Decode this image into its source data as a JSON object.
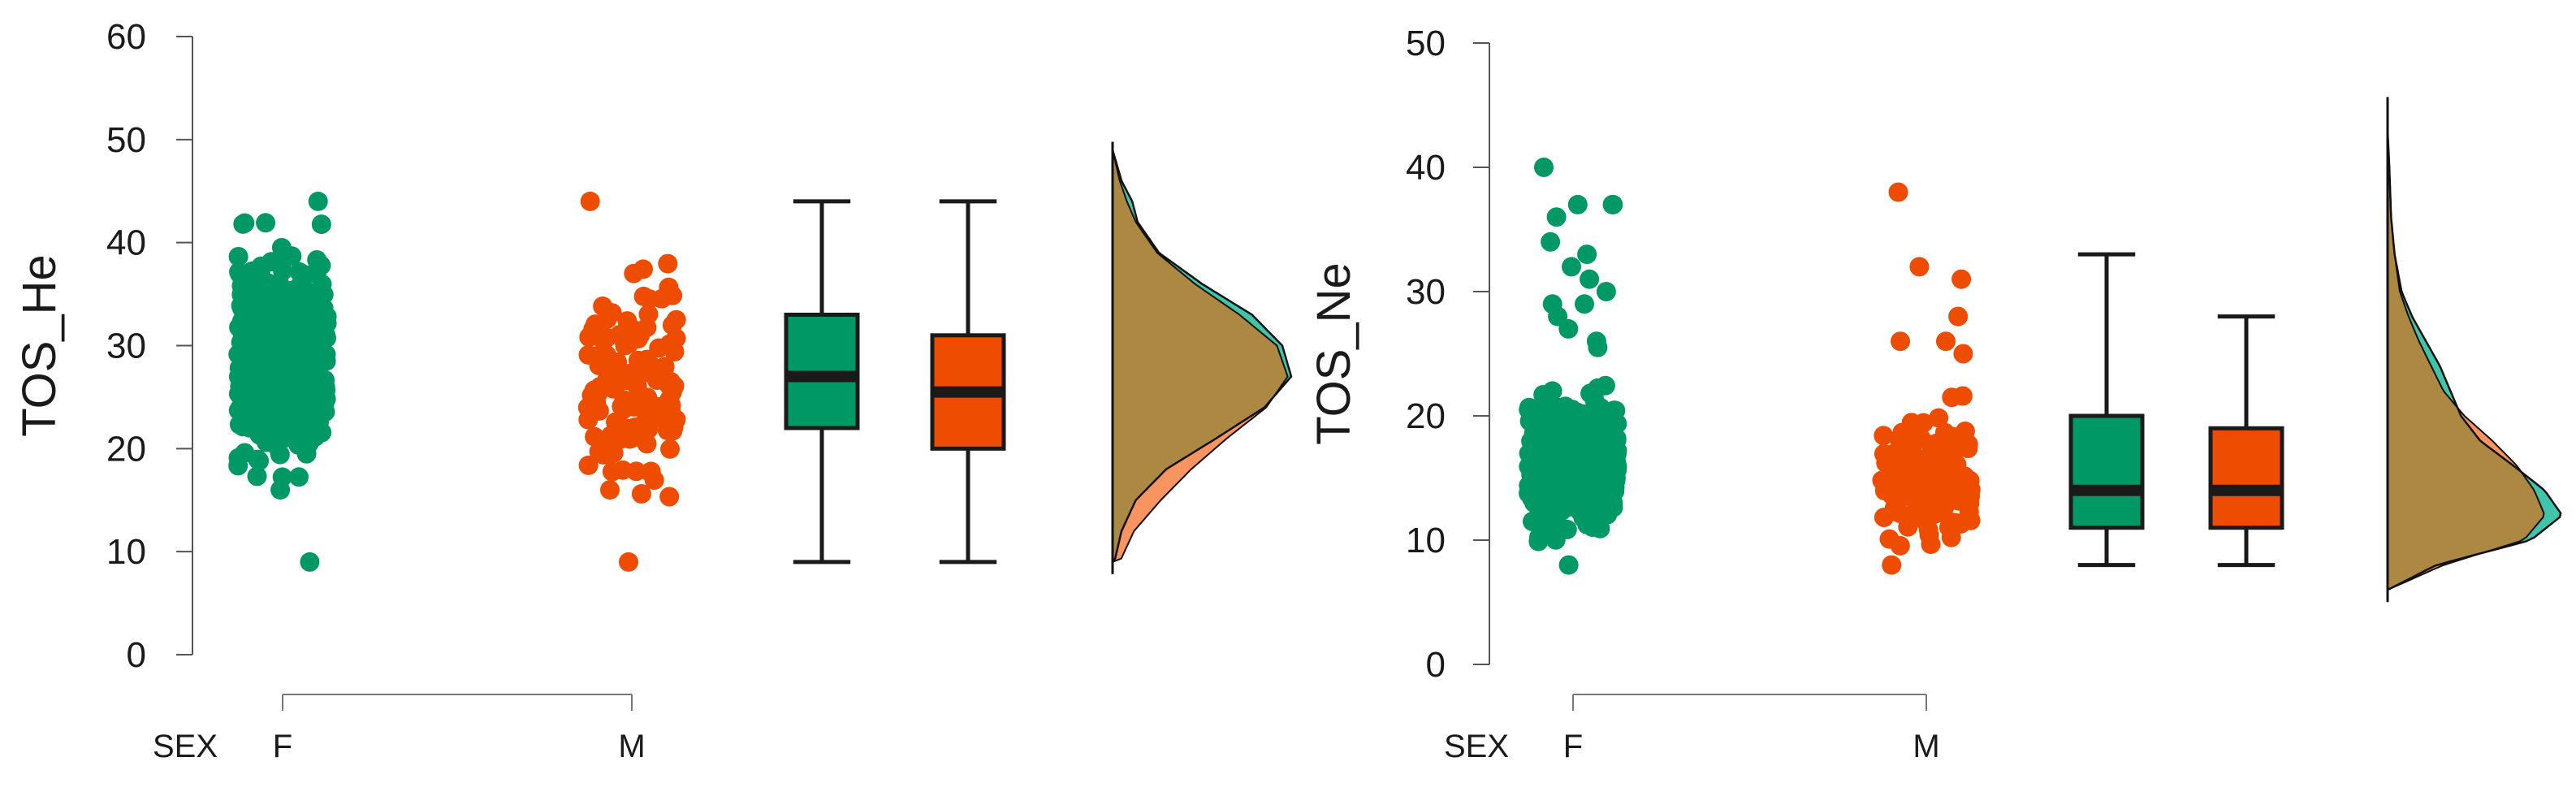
{
  "chart_data": [
    {
      "type": "raincloud",
      "ylabel": "TOS_He",
      "xlabel": "SEX",
      "ylim": [
        0,
        60
      ],
      "yticks": [
        0,
        10,
        20,
        30,
        40,
        50,
        60
      ],
      "categories": [
        "F",
        "M"
      ],
      "colors": {
        "F": "#009966",
        "M": "#ee4c00",
        "F_density": "#40c4aa",
        "M_density": "#f7945f",
        "overlap": "#ad8843"
      },
      "groups": [
        {
          "name": "F",
          "points": {
            "min": 9,
            "max": 44,
            "center": 29,
            "n": 480,
            "outliers": []
          },
          "box": {
            "whisker_low": 9,
            "q1": 22,
            "median": 27,
            "q3": 33,
            "whisker_high": 44
          },
          "density": {
            "y": [
              9,
              12,
              15,
              18,
              21,
              24,
              27,
              30,
              33,
              36,
              39,
              42,
              44,
              46,
              49
            ],
            "d": [
              0.01,
              0.05,
              0.13,
              0.3,
              0.58,
              0.85,
              1.0,
              0.95,
              0.78,
              0.5,
              0.26,
              0.14,
              0.11,
              0.05,
              0.0
            ]
          }
        },
        {
          "name": "M",
          "points": {
            "min": 9,
            "max": 44,
            "center": 26,
            "n": 140,
            "outliers": []
          },
          "box": {
            "whisker_low": 9,
            "q1": 20,
            "median": 25.5,
            "q3": 31,
            "whisker_high": 44
          },
          "density": {
            "y": [
              9,
              12,
              15,
              18,
              21,
              24,
              27,
              30,
              33,
              36,
              39,
              42,
              44,
              46,
              49
            ],
            "d": [
              0.04,
              0.12,
              0.27,
              0.44,
              0.64,
              0.86,
              0.98,
              0.92,
              0.71,
              0.46,
              0.25,
              0.13,
              0.08,
              0.04,
              0.0
            ]
          }
        }
      ]
    },
    {
      "type": "raincloud",
      "ylabel": "TOS_Ne",
      "xlabel": "SEX",
      "ylim": [
        0,
        50
      ],
      "yticks": [
        0,
        10,
        20,
        30,
        40,
        50
      ],
      "categories": [
        "F",
        "M"
      ],
      "colors": {
        "F": "#009966",
        "M": "#ee4c00",
        "F_density": "#40c4aa",
        "M_density": "#f7945f",
        "overlap": "#ad8843"
      },
      "groups": [
        {
          "name": "F",
          "points": {
            "min": 8,
            "max": 25.5,
            "center": 16,
            "n": 480,
            "outliers": [
              26,
              27,
              28,
              29,
              29,
              30,
              31,
              32,
              33,
              34,
              36,
              37,
              37,
              37,
              40
            ]
          },
          "box": {
            "whisker_low": 8,
            "q1": 11,
            "median": 14,
            "q3": 20,
            "whisker_high": 33
          },
          "density": {
            "y": [
              6,
              8,
              10,
              12,
              14,
              16,
              18,
              20,
              22,
              24,
              26,
              28,
              30,
              33,
              36,
              40,
              43,
              45
            ],
            "d": [
              0.0,
              0.28,
              0.82,
              1.0,
              0.9,
              0.72,
              0.53,
              0.42,
              0.36,
              0.3,
              0.22,
              0.14,
              0.08,
              0.04,
              0.02,
              0.01,
              0.0,
              0.0
            ]
          }
        },
        {
          "name": "M",
          "points": {
            "min": 8,
            "max": 25,
            "center": 15,
            "n": 140,
            "outliers": [
              26,
              26,
              28,
              31,
              32,
              38
            ]
          },
          "box": {
            "whisker_low": 8,
            "q1": 11,
            "median": 14,
            "q3": 19,
            "whisker_high": 28
          },
          "density": {
            "y": [
              6,
              8,
              10,
              12,
              14,
              16,
              18,
              20,
              22,
              24,
              26,
              28,
              30,
              33,
              36,
              40,
              43,
              45
            ],
            "d": [
              0.0,
              0.32,
              0.78,
              0.9,
              0.84,
              0.74,
              0.6,
              0.44,
              0.32,
              0.25,
              0.18,
              0.12,
              0.07,
              0.04,
              0.02,
              0.01,
              0.0,
              0.0
            ]
          }
        }
      ]
    }
  ]
}
